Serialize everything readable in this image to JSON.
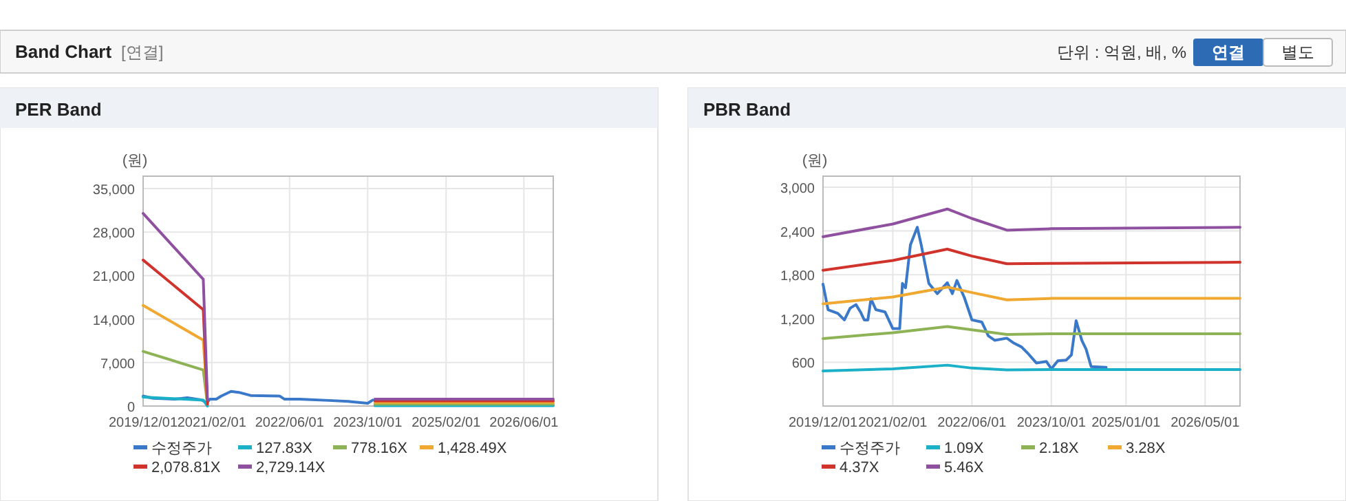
{
  "chart_data": [
    {
      "type": "other",
      "title": "Band Chart",
      "annotations": [
        "[연결]",
        "단위 : 억원, 배, %",
        "연결",
        "별도"
      ]
    },
    {
      "type": "line",
      "title": "PER Band",
      "ylabel": "(원)",
      "xlim": [
        "2019-12-01",
        "2026-12-01"
      ],
      "xticks": [
        {
          "value": "2019-12-01",
          "label": "2019/12/01"
        },
        {
          "value": "2021-02-01",
          "label": "2021/02/01"
        },
        {
          "value": "2022-06-01",
          "label": "2022/06/01"
        },
        {
          "value": "2023-10-01",
          "label": "2023/10/01"
        },
        {
          "value": "2025-02-01",
          "label": "2025/02/01"
        },
        {
          "value": "2026-06-01",
          "label": "2026/06/01"
        }
      ],
      "ylim": [
        0,
        37000
      ],
      "yticks": [
        {
          "value": 0,
          "label": "0"
        },
        {
          "value": 7000,
          "label": "7,000"
        },
        {
          "value": 14000,
          "label": "14,000"
        },
        {
          "value": 21000,
          "label": "21,000"
        },
        {
          "value": 28000,
          "label": "28,000"
        },
        {
          "value": 35000,
          "label": "35,000"
        }
      ],
      "grid": true,
      "legend": "bottom",
      "series": [
        {
          "name": "수정주가",
          "color": "#3a78c9",
          "x": [
            "2019-12-01",
            "2020-02-01",
            "2020-04-01",
            "2020-06-15",
            "2020-09-01",
            "2020-12-01",
            "2021-01-01",
            "2021-01-20",
            "2021-03-01",
            "2021-04-01",
            "2021-06-01",
            "2021-07-20",
            "2021-10-01",
            "2022-04-01",
            "2022-05-01",
            "2022-08-01",
            "2023-02-01",
            "2023-06-01",
            "2023-10-01",
            "2023-11-01"
          ],
          "values": [
            1600,
            1250,
            1180,
            1100,
            1330,
            960,
            500,
            1100,
            1100,
            1600,
            2350,
            2200,
            1700,
            1600,
            1100,
            1100,
            900,
            750,
            450,
            950
          ]
        },
        {
          "name": "127.83X",
          "color": "#1ab0c8",
          "x": [
            "2019-12-01",
            "2020-12-10",
            "2021-01-05",
            "2022-06-01",
            "2023-11-15",
            "2026-12-01"
          ],
          "values": [
            1450,
            950,
            0,
            null,
            50,
            50
          ]
        },
        {
          "name": "778.16X",
          "color": "#8db356",
          "x": [
            "2019-12-01",
            "2020-12-10",
            "2021-01-05",
            "2022-06-01",
            "2023-11-15",
            "2026-12-01"
          ],
          "values": [
            8800,
            5800,
            300,
            null,
            310,
            310
          ]
        },
        {
          "name": "1,428.49X",
          "color": "#f0a830",
          "x": [
            "2019-12-01",
            "2020-12-10",
            "2021-01-05",
            "2022-06-01",
            "2023-11-15",
            "2026-12-01"
          ],
          "values": [
            16200,
            10600,
            300,
            null,
            580,
            580
          ]
        },
        {
          "name": "2,078.81X",
          "color": "#d0332b",
          "x": [
            "2019-12-01",
            "2020-12-10",
            "2021-01-05",
            "2022-06-01",
            "2023-11-15",
            "2026-12-01"
          ],
          "values": [
            23500,
            15500,
            300,
            null,
            840,
            840
          ]
        },
        {
          "name": "2,729.14X",
          "color": "#9050a0",
          "x": [
            "2019-12-01",
            "2020-12-10",
            "2021-01-05",
            "2022-06-01",
            "2023-11-15",
            "2026-12-01"
          ],
          "values": [
            31000,
            20400,
            1000,
            null,
            1100,
            1100
          ]
        }
      ]
    },
    {
      "type": "line",
      "title": "PBR Band",
      "ylabel": "(원)",
      "xlim": [
        "2019-12-01",
        "2026-12-01"
      ],
      "xticks": [
        {
          "value": "2019-12-01",
          "label": "2019/12/01"
        },
        {
          "value": "2021-02-01",
          "label": "2021/02/01"
        },
        {
          "value": "2022-06-01",
          "label": "2022/06/01"
        },
        {
          "value": "2023-10-01",
          "label": "2023/10/01"
        },
        {
          "value": "2025-01-01",
          "label": "2025/01/01"
        },
        {
          "value": "2026-05-01",
          "label": "2026/05/01"
        }
      ],
      "ylim": [
        0,
        3150
      ],
      "yticks": [
        {
          "value": 600,
          "label": "600"
        },
        {
          "value": 1200,
          "label": "1,200"
        },
        {
          "value": 1800,
          "label": "1,800"
        },
        {
          "value": 2400,
          "label": "2,400"
        },
        {
          "value": 3000,
          "label": "3,000"
        }
      ],
      "grid": true,
      "legend": "bottom",
      "series": [
        {
          "name": "수정주가",
          "color": "#3a78c9",
          "x": [
            "2019-12-01",
            "2020-01-01",
            "2020-03-01",
            "2020-04-10",
            "2020-05-15",
            "2020-06-20",
            "2020-07-20",
            "2020-08-10",
            "2020-09-01",
            "2020-09-20",
            "2020-10-20",
            "2020-12-15",
            "2021-02-01",
            "2021-03-15",
            "2021-04-01",
            "2021-04-20",
            "2021-05-20",
            "2021-07-01",
            "2021-07-25",
            "2021-09-10",
            "2021-11-01",
            "2022-01-01",
            "2022-02-01",
            "2022-03-01",
            "2022-04-15",
            "2022-06-01",
            "2022-08-01",
            "2022-09-10",
            "2022-10-20",
            "2023-01-01",
            "2023-02-15",
            "2023-04-01",
            "2023-05-15",
            "2023-07-01",
            "2023-09-01",
            "2023-10-01",
            "2023-11-10",
            "2024-01-01",
            "2024-02-01",
            "2024-03-01",
            "2024-04-05",
            "2024-05-01",
            "2024-06-01",
            "2024-09-01"
          ],
          "values": [
            1670,
            1320,
            1270,
            1180,
            1340,
            1390,
            1280,
            1180,
            1180,
            1470,
            1320,
            1290,
            1060,
            1060,
            1680,
            1620,
            2210,
            2450,
            2210,
            1680,
            1540,
            1690,
            1540,
            1720,
            1490,
            1180,
            1150,
            960,
            900,
            930,
            860,
            810,
            710,
            590,
            610,
            510,
            620,
            630,
            700,
            1170,
            900,
            780,
            540,
            530
          ]
        },
        {
          "name": "1.09X",
          "color": "#1ab0c8",
          "x": [
            "2019-12-01",
            "2021-02-01",
            "2022-01-01",
            "2022-06-01",
            "2023-01-01",
            "2023-10-01",
            "2026-12-01"
          ],
          "values": [
            480,
            510,
            560,
            520,
            495,
            500,
            500
          ]
        },
        {
          "name": "2.18X",
          "color": "#8db356",
          "x": [
            "2019-12-01",
            "2021-02-01",
            "2022-01-01",
            "2022-06-01",
            "2023-01-01",
            "2023-10-01",
            "2026-12-01"
          ],
          "values": [
            925,
            1005,
            1090,
            1045,
            980,
            990,
            990
          ]
        },
        {
          "name": "3.28X",
          "color": "#f0a830",
          "x": [
            "2019-12-01",
            "2021-02-01",
            "2022-01-01",
            "2022-06-01",
            "2023-01-01",
            "2023-10-01",
            "2026-12-01"
          ],
          "values": [
            1400,
            1495,
            1630,
            1555,
            1455,
            1475,
            1475
          ]
        },
        {
          "name": "4.37X",
          "color": "#d0332b",
          "x": [
            "2019-12-01",
            "2021-02-01",
            "2022-01-01",
            "2022-06-01",
            "2023-01-01",
            "2023-10-01",
            "2026-12-01"
          ],
          "values": [
            1860,
            1995,
            2150,
            2055,
            1950,
            1955,
            1970
          ]
        },
        {
          "name": "5.46X",
          "color": "#9050a0",
          "x": [
            "2019-12-01",
            "2021-02-01",
            "2022-01-01",
            "2022-06-01",
            "2023-01-01",
            "2023-10-01",
            "2026-12-01"
          ],
          "values": [
            2320,
            2495,
            2700,
            2570,
            2410,
            2430,
            2450
          ]
        }
      ]
    }
  ]
}
